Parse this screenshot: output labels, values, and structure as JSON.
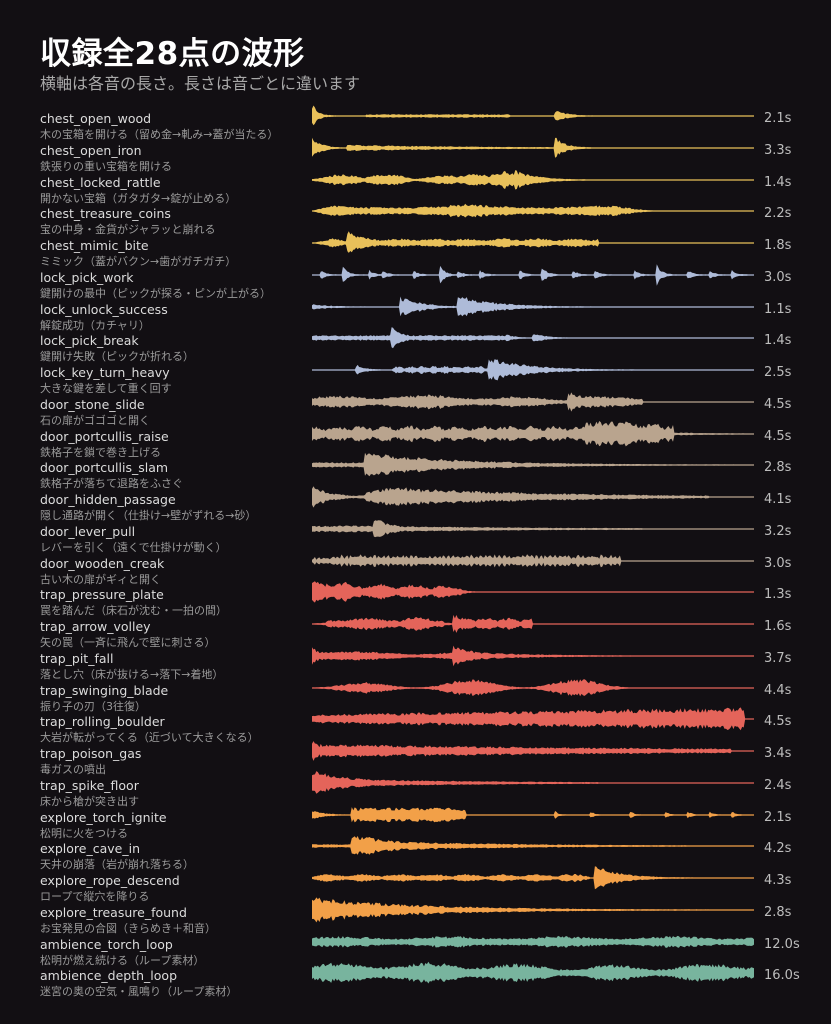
{
  "header": {
    "title": "収録全28点の波形",
    "subtitle": "横軸は各音の長さ。長さは音ごとに違います"
  },
  "chart_data": {
    "type": "waveform",
    "title": "収録全28点の波形",
    "subtitle": "横軸は各音の長さ。長さは音ごとに違います",
    "duration_unit": "s",
    "categories": {
      "chest": "#e8c05a",
      "lock": "#aebbd8",
      "door": "#b9a48e",
      "trap": "#e4645a",
      "explore": "#f2a048",
      "ambience": "#78b49e"
    },
    "sounds": [
      {
        "id": "chest_open_wood",
        "description": "木の宝箱を開ける（留め金→軋み→蓋が当たる）",
        "duration": 2.1,
        "duration_label": "2.1s",
        "category": "chest",
        "color": "#e8c05a"
      },
      {
        "id": "chest_open_iron",
        "description": "鉄張りの重い宝箱を開ける",
        "duration": 3.3,
        "duration_label": "3.3s",
        "category": "chest",
        "color": "#e8c05a"
      },
      {
        "id": "chest_locked_rattle",
        "description": "開かない宝箱（ガタガタ→錠が止める）",
        "duration": 1.4,
        "duration_label": "1.4s",
        "category": "chest",
        "color": "#e8c05a"
      },
      {
        "id": "chest_treasure_coins",
        "description": "宝の中身・金貨がジャラッと崩れる",
        "duration": 2.2,
        "duration_label": "2.2s",
        "category": "chest",
        "color": "#e8c05a"
      },
      {
        "id": "chest_mimic_bite",
        "description": "ミミック（蓋がバクン→歯がガチガチ）",
        "duration": 1.8,
        "duration_label": "1.8s",
        "category": "chest",
        "color": "#e8c05a"
      },
      {
        "id": "lock_pick_work",
        "description": "鍵開けの最中（ピックが探る・ピンが上がる）",
        "duration": 3.0,
        "duration_label": "3.0s",
        "category": "lock",
        "color": "#aebbd8"
      },
      {
        "id": "lock_unlock_success",
        "description": "解錠成功（カチャリ）",
        "duration": 1.1,
        "duration_label": "1.1s",
        "category": "lock",
        "color": "#aebbd8"
      },
      {
        "id": "lock_pick_break",
        "description": "鍵開け失敗（ピックが折れる）",
        "duration": 1.4,
        "duration_label": "1.4s",
        "category": "lock",
        "color": "#aebbd8"
      },
      {
        "id": "lock_key_turn_heavy",
        "description": "大きな鍵を差して重く回す",
        "duration": 2.5,
        "duration_label": "2.5s",
        "category": "lock",
        "color": "#aebbd8"
      },
      {
        "id": "door_stone_slide",
        "description": "石の扉がゴゴゴと開く",
        "duration": 4.5,
        "duration_label": "4.5s",
        "category": "door",
        "color": "#b9a48e"
      },
      {
        "id": "door_portcullis_raise",
        "description": "鉄格子を鎖で巻き上げる",
        "duration": 4.5,
        "duration_label": "4.5s",
        "category": "door",
        "color": "#b9a48e"
      },
      {
        "id": "door_portcullis_slam",
        "description": "鉄格子が落ちて退路をふさぐ",
        "duration": 2.8,
        "duration_label": "2.8s",
        "category": "door",
        "color": "#b9a48e"
      },
      {
        "id": "door_hidden_passage",
        "description": "隠し通路が開く（仕掛け→壁がずれる→砂）",
        "duration": 4.1,
        "duration_label": "4.1s",
        "category": "door",
        "color": "#b9a48e"
      },
      {
        "id": "door_lever_pull",
        "description": "レバーを引く（遠くで仕掛けが動く）",
        "duration": 3.2,
        "duration_label": "3.2s",
        "category": "door",
        "color": "#b9a48e"
      },
      {
        "id": "door_wooden_creak",
        "description": "古い木の扉がギィと開く",
        "duration": 3.0,
        "duration_label": "3.0s",
        "category": "door",
        "color": "#b9a48e"
      },
      {
        "id": "trap_pressure_plate",
        "description": "罠を踏んだ（床石が沈む・一拍の間）",
        "duration": 1.3,
        "duration_label": "1.3s",
        "category": "trap",
        "color": "#e4645a"
      },
      {
        "id": "trap_arrow_volley",
        "description": "矢の罠（一斉に飛んで壁に刺さる）",
        "duration": 1.6,
        "duration_label": "1.6s",
        "category": "trap",
        "color": "#e4645a"
      },
      {
        "id": "trap_pit_fall",
        "description": "落とし穴（床が抜ける→落下→着地）",
        "duration": 3.7,
        "duration_label": "3.7s",
        "category": "trap",
        "color": "#e4645a"
      },
      {
        "id": "trap_swinging_blade",
        "description": "振り子の刃（3往復）",
        "duration": 4.4,
        "duration_label": "4.4s",
        "category": "trap",
        "color": "#e4645a"
      },
      {
        "id": "trap_rolling_boulder",
        "description": "大岩が転がってくる（近づいて大きくなる）",
        "duration": 4.5,
        "duration_label": "4.5s",
        "category": "trap",
        "color": "#e4645a"
      },
      {
        "id": "trap_poison_gas",
        "description": "毒ガスの噴出",
        "duration": 3.4,
        "duration_label": "3.4s",
        "category": "trap",
        "color": "#e4645a"
      },
      {
        "id": "trap_spike_floor",
        "description": "床から槍が突き出す",
        "duration": 2.4,
        "duration_label": "2.4s",
        "category": "trap",
        "color": "#e4645a"
      },
      {
        "id": "explore_torch_ignite",
        "description": "松明に火をつける",
        "duration": 2.1,
        "duration_label": "2.1s",
        "category": "explore",
        "color": "#f2a048"
      },
      {
        "id": "explore_cave_in",
        "description": "天井の崩落（岩が崩れ落ちる）",
        "duration": 4.2,
        "duration_label": "4.2s",
        "category": "explore",
        "color": "#f2a048"
      },
      {
        "id": "explore_rope_descend",
        "description": "ロープで縦穴を降りる",
        "duration": 4.3,
        "duration_label": "4.3s",
        "category": "explore",
        "color": "#f2a048"
      },
      {
        "id": "explore_treasure_found",
        "description": "お宝発見の合図（きらめき＋和音）",
        "duration": 2.8,
        "duration_label": "2.8s",
        "category": "explore",
        "color": "#f2a048"
      },
      {
        "id": "ambience_torch_loop",
        "description": "松明が燃え続ける（ループ素材）",
        "duration": 12.0,
        "duration_label": "12.0s",
        "category": "ambience",
        "color": "#78b49e"
      },
      {
        "id": "ambience_depth_loop",
        "description": "迷宮の奥の空気・風鳴り（ループ素材）",
        "duration": 16.0,
        "duration_label": "16.0s",
        "category": "ambience",
        "color": "#78b49e"
      }
    ]
  }
}
